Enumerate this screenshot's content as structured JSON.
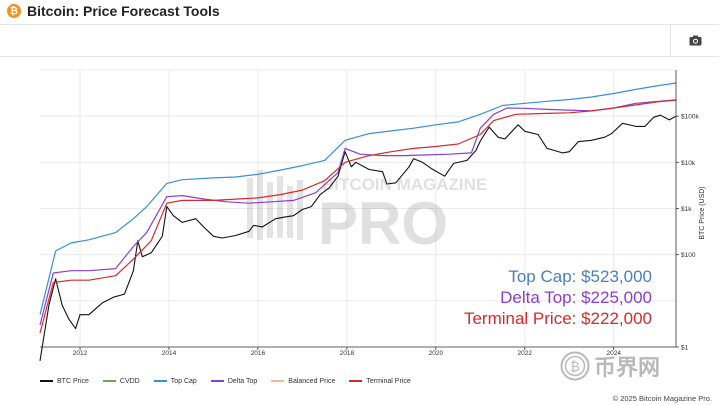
{
  "header": {
    "title": "Bitcoin: Price Forecast Tools",
    "logo_glyph": "₿",
    "logo_color": "#f7931a"
  },
  "toolbar": {
    "camera_icon": "camera-icon"
  },
  "watermark": {
    "line1": "BITCOIN MAGAZINE",
    "line2": "PRO"
  },
  "corner_brand": {
    "text": "币界网"
  },
  "annotations": [
    {
      "text": "Top Cap: $523,000",
      "color": "#4a7fc0"
    },
    {
      "text": "Delta Top: $225,000",
      "color": "#8a3fd0"
    },
    {
      "text": "Terminal Price: $222,000",
      "color": "#d72a2a"
    }
  ],
  "footer": {
    "text": "© 2025 Bitcoin Magazine Pro."
  },
  "chart_data": {
    "type": "line",
    "title": "",
    "xlabel": "",
    "ylabel": "BTC Price (USD)",
    "y_scale": "log",
    "ylim": [
      1,
      1000000
    ],
    "xlim": [
      2011.1,
      2025.4
    ],
    "x_ticks": [
      "2012",
      "2014",
      "2016",
      "2018",
      "2020",
      "2022",
      "2024"
    ],
    "y_ticks": [
      "$100k",
      "$10k",
      "$1k",
      "$100",
      "$1"
    ],
    "y_tick_values": [
      100000,
      10000,
      1000,
      100,
      1
    ],
    "grid": true,
    "legend_position": "bottom",
    "series": [
      {
        "name": "BTC Price",
        "color": "#111111",
        "points": [
          [
            2011.1,
            0.5
          ],
          [
            2011.3,
            8
          ],
          [
            2011.45,
            30
          ],
          [
            2011.6,
            8
          ],
          [
            2011.75,
            4
          ],
          [
            2011.9,
            2.5
          ],
          [
            2012.0,
            5
          ],
          [
            2012.2,
            5
          ],
          [
            2012.5,
            9
          ],
          [
            2012.75,
            12
          ],
          [
            2013.0,
            14
          ],
          [
            2013.2,
            45
          ],
          [
            2013.3,
            200
          ],
          [
            2013.4,
            90
          ],
          [
            2013.6,
            110
          ],
          [
            2013.85,
            250
          ],
          [
            2013.95,
            1100
          ],
          [
            2014.1,
            700
          ],
          [
            2014.3,
            500
          ],
          [
            2014.6,
            600
          ],
          [
            2014.8,
            380
          ],
          [
            2015.0,
            250
          ],
          [
            2015.2,
            230
          ],
          [
            2015.5,
            260
          ],
          [
            2015.8,
            320
          ],
          [
            2015.9,
            430
          ],
          [
            2016.1,
            400
          ],
          [
            2016.4,
            600
          ],
          [
            2016.6,
            650
          ],
          [
            2016.8,
            700
          ],
          [
            2017.0,
            950
          ],
          [
            2017.2,
            1100
          ],
          [
            2017.4,
            2000
          ],
          [
            2017.6,
            2800
          ],
          [
            2017.8,
            5000
          ],
          [
            2017.96,
            17000
          ],
          [
            2018.1,
            8000
          ],
          [
            2018.2,
            10000
          ],
          [
            2018.5,
            7000
          ],
          [
            2018.8,
            6300
          ],
          [
            2018.9,
            3400
          ],
          [
            2019.1,
            3600
          ],
          [
            2019.4,
            8000
          ],
          [
            2019.5,
            12000
          ],
          [
            2019.7,
            10000
          ],
          [
            2019.9,
            7300
          ],
          [
            2020.2,
            5000
          ],
          [
            2020.4,
            9500
          ],
          [
            2020.7,
            11000
          ],
          [
            2020.9,
            18000
          ],
          [
            2021.0,
            29000
          ],
          [
            2021.2,
            58000
          ],
          [
            2021.4,
            35000
          ],
          [
            2021.55,
            32000
          ],
          [
            2021.85,
            65000
          ],
          [
            2022.0,
            47000
          ],
          [
            2022.3,
            40000
          ],
          [
            2022.5,
            20000
          ],
          [
            2022.85,
            16000
          ],
          [
            2023.0,
            17000
          ],
          [
            2023.2,
            28000
          ],
          [
            2023.5,
            30000
          ],
          [
            2023.8,
            35000
          ],
          [
            2023.95,
            42000
          ],
          [
            2024.2,
            70000
          ],
          [
            2024.5,
            60000
          ],
          [
            2024.7,
            60000
          ],
          [
            2024.9,
            95000
          ],
          [
            2025.05,
            105000
          ],
          [
            2025.25,
            83000
          ],
          [
            2025.4,
            100000
          ]
        ]
      },
      {
        "name": "CVDD",
        "color": "#6caa5a",
        "points": []
      },
      {
        "name": "Top Cap",
        "color": "#3a8fd8",
        "points": [
          [
            2011.1,
            5
          ],
          [
            2011.45,
            120
          ],
          [
            2011.8,
            180
          ],
          [
            2012.2,
            210
          ],
          [
            2012.8,
            300
          ],
          [
            2013.2,
            600
          ],
          [
            2013.5,
            1100
          ],
          [
            2013.95,
            3500
          ],
          [
            2014.3,
            4200
          ],
          [
            2015.0,
            4600
          ],
          [
            2015.5,
            4800
          ],
          [
            2016.0,
            5500
          ],
          [
            2016.5,
            6800
          ],
          [
            2017.0,
            8500
          ],
          [
            2017.5,
            11000
          ],
          [
            2017.96,
            30000
          ],
          [
            2018.5,
            42000
          ],
          [
            2019.0,
            48000
          ],
          [
            2019.5,
            55000
          ],
          [
            2020.0,
            65000
          ],
          [
            2020.5,
            75000
          ],
          [
            2021.0,
            110000
          ],
          [
            2021.5,
            170000
          ],
          [
            2022.0,
            190000
          ],
          [
            2022.5,
            210000
          ],
          [
            2023.0,
            230000
          ],
          [
            2023.5,
            260000
          ],
          [
            2024.0,
            310000
          ],
          [
            2024.5,
            380000
          ],
          [
            2025.0,
            460000
          ],
          [
            2025.4,
            523000
          ]
        ]
      },
      {
        "name": "Delta Top",
        "color": "#8a3fd0",
        "points": [
          [
            2011.1,
            3
          ],
          [
            2011.4,
            40
          ],
          [
            2011.8,
            45
          ],
          [
            2012.2,
            45
          ],
          [
            2012.8,
            50
          ],
          [
            2013.2,
            150
          ],
          [
            2013.5,
            300
          ],
          [
            2013.95,
            1800
          ],
          [
            2014.3,
            1900
          ],
          [
            2014.8,
            1600
          ],
          [
            2015.3,
            1400
          ],
          [
            2015.8,
            1300
          ],
          [
            2016.3,
            1400
          ],
          [
            2016.8,
            1500
          ],
          [
            2017.3,
            2200
          ],
          [
            2017.8,
            6000
          ],
          [
            2017.96,
            20000
          ],
          [
            2018.3,
            15000
          ],
          [
            2018.8,
            14000
          ],
          [
            2019.3,
            14000
          ],
          [
            2019.8,
            14500
          ],
          [
            2020.3,
            15000
          ],
          [
            2020.8,
            16000
          ],
          [
            2021.0,
            55000
          ],
          [
            2021.3,
            110000
          ],
          [
            2021.6,
            150000
          ],
          [
            2022.0,
            148000
          ],
          [
            2022.5,
            140000
          ],
          [
            2023.0,
            135000
          ],
          [
            2023.5,
            130000
          ],
          [
            2024.0,
            150000
          ],
          [
            2024.5,
            190000
          ],
          [
            2025.0,
            210000
          ],
          [
            2025.4,
            225000
          ]
        ]
      },
      {
        "name": "Balanced Price",
        "color": "#f2b896",
        "points": []
      },
      {
        "name": "Terminal Price",
        "color": "#d72a2a",
        "points": [
          [
            2011.1,
            2
          ],
          [
            2011.4,
            25
          ],
          [
            2011.8,
            28
          ],
          [
            2012.2,
            28
          ],
          [
            2012.8,
            35
          ],
          [
            2013.2,
            80
          ],
          [
            2013.6,
            200
          ],
          [
            2013.95,
            1300
          ],
          [
            2014.3,
            1500
          ],
          [
            2015.0,
            1500
          ],
          [
            2015.5,
            1600
          ],
          [
            2016.0,
            1700
          ],
          [
            2016.5,
            2000
          ],
          [
            2017.0,
            2500
          ],
          [
            2017.5,
            4000
          ],
          [
            2017.96,
            10000
          ],
          [
            2018.5,
            14000
          ],
          [
            2019.0,
            17000
          ],
          [
            2019.5,
            20000
          ],
          [
            2020.0,
            22000
          ],
          [
            2020.5,
            25000
          ],
          [
            2021.0,
            40000
          ],
          [
            2021.3,
            80000
          ],
          [
            2021.8,
            110000
          ],
          [
            2022.5,
            115000
          ],
          [
            2023.0,
            118000
          ],
          [
            2023.5,
            130000
          ],
          [
            2024.0,
            150000
          ],
          [
            2024.5,
            175000
          ],
          [
            2025.0,
            205000
          ],
          [
            2025.4,
            222000
          ]
        ]
      }
    ]
  }
}
